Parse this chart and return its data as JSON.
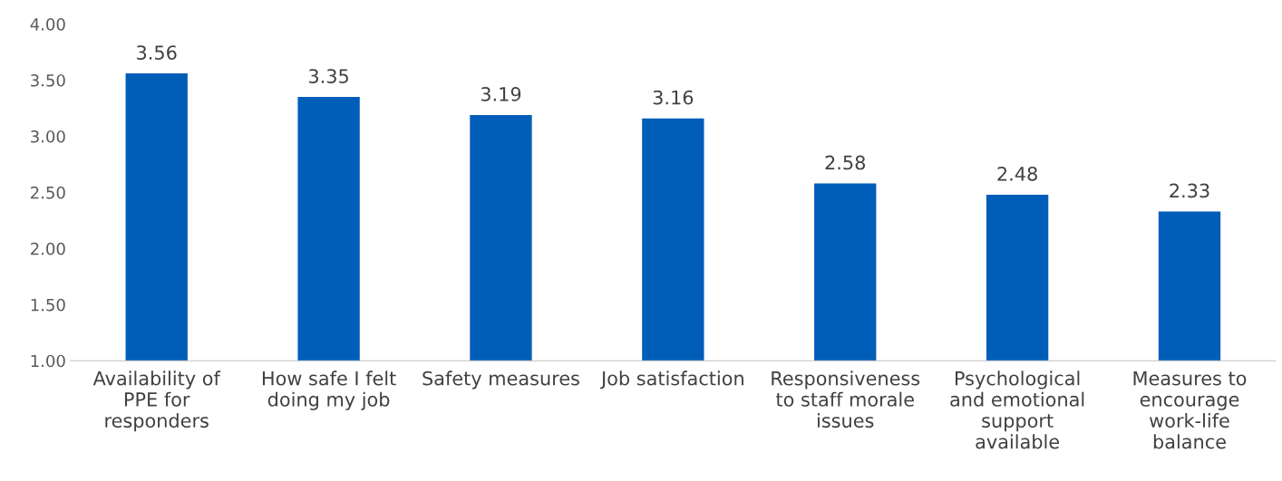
{
  "chart_data": {
    "type": "bar",
    "categories": [
      "Availability of PPE for responders",
      "How safe I felt doing my job",
      "Safety measures",
      "Job satisfaction",
      "Responsiveness to staff morale issues",
      "Psychological and emotional support available",
      "Measures to encourage work-life balance"
    ],
    "values": [
      3.56,
      3.35,
      3.19,
      3.16,
      2.58,
      2.48,
      2.33
    ],
    "color": "#005eb8",
    "ylim": [
      1,
      4
    ],
    "yticks": [
      {
        "value": 1,
        "label": "1.00"
      },
      {
        "value": 1.5,
        "label": "1.50"
      },
      {
        "value": 2,
        "label": "2.00"
      },
      {
        "value": 2.5,
        "label": "2.50"
      },
      {
        "value": 3,
        "label": "3.00"
      },
      {
        "value": 3.5,
        "label": "3.50"
      },
      {
        "value": 4,
        "label": "4.00"
      }
    ],
    "data_labels": true,
    "grid": false,
    "legend": false
  }
}
